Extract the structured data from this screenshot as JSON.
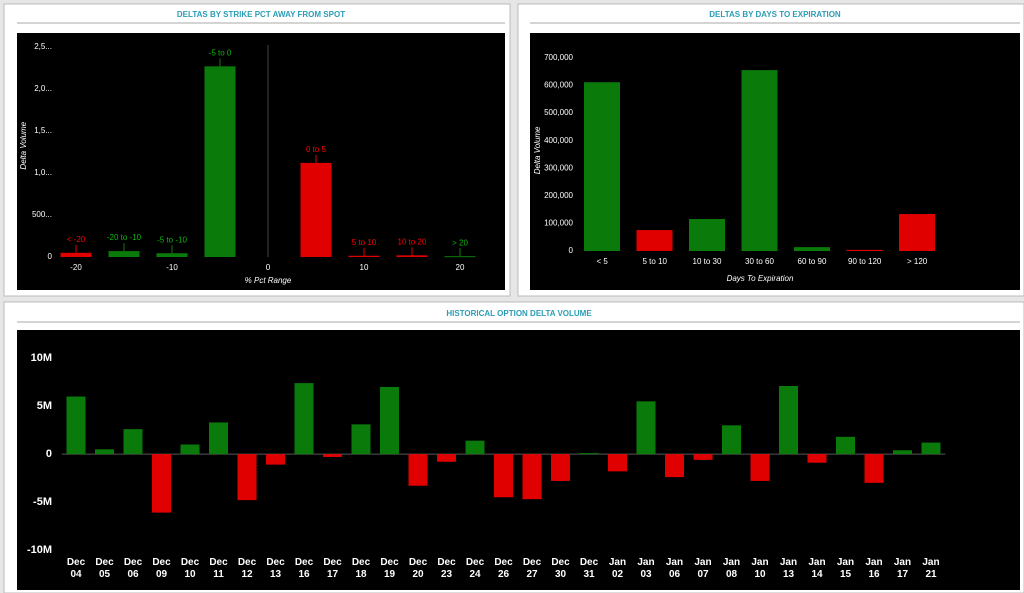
{
  "chart_data": [
    {
      "type": "bar",
      "title": "DELTAS BY STRIKE PCT AWAY FROM SPOT",
      "xlabel": "% Pct Range",
      "ylabel": "Delta Volume",
      "x": [
        -20,
        -15,
        -10,
        -5,
        5,
        10,
        15,
        20
      ],
      "bar_labels": [
        "< -20",
        "-20 to -10",
        "-5 to -10",
        "-5 to 0",
        "0 to 5",
        "5 to 10",
        "10 to 20",
        "> 20"
      ],
      "values": [
        50000,
        70000,
        45000,
        2270000,
        1120000,
        15000,
        20000,
        10000
      ],
      "colors": [
        "#e00000",
        "#0a7a0a",
        "#0a7a0a",
        "#0a7a0a",
        "#e00000",
        "#e00000",
        "#e00000",
        "#0a7a0a"
      ],
      "xlim": [
        -24,
        24
      ],
      "xticks": [
        -20,
        -10,
        0,
        10,
        20
      ],
      "ylim": [
        0,
        2650000
      ],
      "yticks": [
        0,
        {
          "value": 500000,
          "label": "500..."
        },
        {
          "value": 1000000,
          "label": "1,0..."
        },
        {
          "value": 1500000,
          "label": "1,5..."
        },
        {
          "value": 2000000,
          "label": "2,0..."
        },
        {
          "value": 2500000,
          "label": "2,5..."
        }
      ]
    },
    {
      "type": "bar",
      "title": "DELTAS BY DAYS TO EXPIRATION",
      "xlabel": "Days To Expiration",
      "ylabel": "Delta Volume",
      "categories": [
        "< 5",
        "5 to 10",
        "10 to 30",
        "30 to 60",
        "60 to 90",
        "90 to 120",
        "> 120"
      ],
      "values": [
        612000,
        76000,
        116000,
        656000,
        14000,
        4000,
        134000
      ],
      "colors": [
        "#0a7a0a",
        "#e00000",
        "#0a7a0a",
        "#0a7a0a",
        "#0a7a0a",
        "#e00000",
        "#e00000"
      ],
      "ylim": [
        0,
        730000
      ],
      "yticks": [
        0,
        {
          "value": 100000,
          "label": "100,000"
        },
        {
          "value": 200000,
          "label": "200,000"
        },
        {
          "value": 300000,
          "label": "300,000"
        },
        {
          "value": 400000,
          "label": "400,000"
        },
        {
          "value": 500000,
          "label": "500,000"
        },
        {
          "value": 600000,
          "label": "600,000"
        },
        {
          "value": 700000,
          "label": "700,000"
        }
      ]
    },
    {
      "type": "bar",
      "title": "HISTORICAL OPTION DELTA VOLUME",
      "categories": [
        "Dec 04",
        "Dec 05",
        "Dec 06",
        "Dec 09",
        "Dec 10",
        "Dec 11",
        "Dec 12",
        "Dec 13",
        "Dec 16",
        "Dec 17",
        "Dec 18",
        "Dec 19",
        "Dec 20",
        "Dec 23",
        "Dec 24",
        "Dec 26",
        "Dec 27",
        "Dec 30",
        "Dec 31",
        "Jan 02",
        "Jan 03",
        "Jan 06",
        "Jan 07",
        "Jan 08",
        "Jan 10",
        "Jan 13",
        "Jan 14",
        "Jan 15",
        "Jan 16",
        "Jan 17",
        "Jan 21"
      ],
      "values": [
        6000000,
        500000,
        2600000,
        -6100000,
        1000000,
        3300000,
        -4800000,
        -1100000,
        7400000,
        -300000,
        3100000,
        7000000,
        -3300000,
        -800000,
        1400000,
        -4500000,
        -4700000,
        -2800000,
        100000,
        -1800000,
        5500000,
        -2400000,
        -600000,
        3000000,
        -2800000,
        7100000,
        -900000,
        1800000,
        -3000000,
        400000,
        1200000
      ],
      "positive_color": "#0a7a0a",
      "negative_color": "#e00000",
      "ylim": [
        -10000000,
        12000000
      ],
      "yticks": [
        {
          "value": -10000000,
          "label": "-10M"
        },
        {
          "value": -5000000,
          "label": "-5M"
        },
        0,
        {
          "value": 5000000,
          "label": "5M"
        },
        {
          "value": 10000000,
          "label": "10M"
        }
      ]
    }
  ]
}
